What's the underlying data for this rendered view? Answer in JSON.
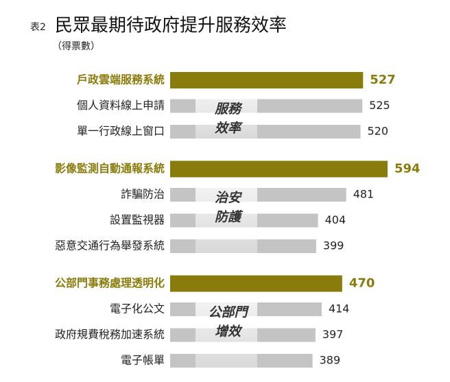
{
  "chart_data": {
    "type": "bar",
    "orientation": "horizontal",
    "title_prefix": "表2",
    "title": "民眾最期待政府提升服務效率",
    "subtitle": "（得票數）",
    "color": "#c4c4c4",
    "highlight_color": "#8a7c0c",
    "groups": [
      {
        "label": [
          "服務",
          "效率"
        ],
        "categories": [
          "戶政雲端服務系統",
          "個人資料線上申請",
          "單一行政線上窗口"
        ],
        "values": [
          527,
          525,
          520
        ]
      },
      {
        "label": [
          "治安",
          "防護"
        ],
        "categories": [
          "影像監測自動通報系統",
          "詐騙防治",
          "設置監視器",
          "惡意交通行為舉發系統"
        ],
        "values": [
          594,
          481,
          404,
          399
        ]
      },
      {
        "label": [
          "公部門",
          "增效"
        ],
        "categories": [
          "公部門事務處理透明化",
          "電子化公文",
          "政府規費稅務加速系統",
          "電子帳單"
        ],
        "values": [
          470,
          414,
          397,
          389
        ]
      }
    ]
  }
}
